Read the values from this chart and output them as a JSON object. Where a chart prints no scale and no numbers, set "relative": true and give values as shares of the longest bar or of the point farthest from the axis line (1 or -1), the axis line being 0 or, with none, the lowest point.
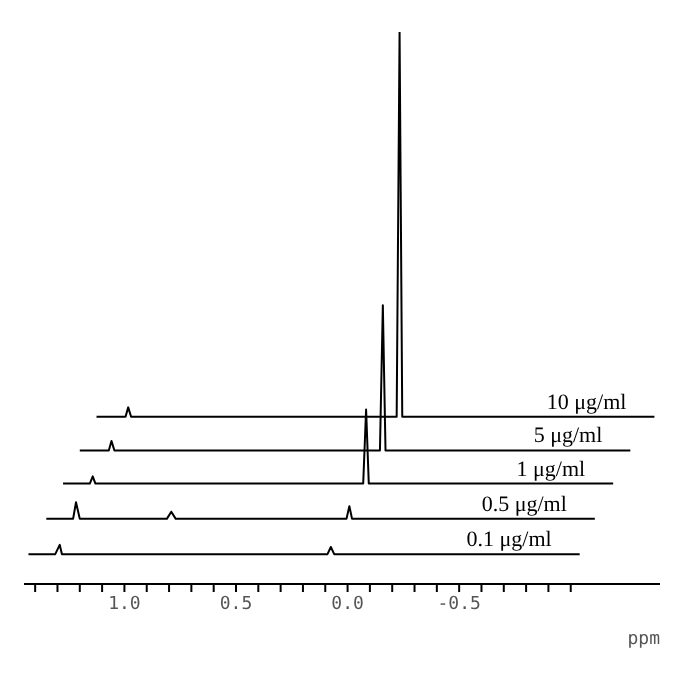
{
  "chart_data": {
    "type": "line",
    "relative": true,
    "xlabel": "ppm",
    "xlim": [
      1.45,
      -1.4
    ],
    "xticks": [
      {
        "value": 1.4,
        "label": null
      },
      {
        "value": 1.3,
        "label": null
      },
      {
        "value": 1.2,
        "label": null
      },
      {
        "value": 1.1,
        "label": null
      },
      {
        "value": 1.0,
        "label": "1.0"
      },
      {
        "value": 0.9,
        "label": null
      },
      {
        "value": 0.8,
        "label": null
      },
      {
        "value": 0.7,
        "label": null
      },
      {
        "value": 0.6,
        "label": null
      },
      {
        "value": 0.5,
        "label": "0.5"
      },
      {
        "value": 0.4,
        "label": null
      },
      {
        "value": 0.3,
        "label": null
      },
      {
        "value": 0.2,
        "label": null
      },
      {
        "value": 0.1,
        "label": null
      },
      {
        "value": 0.0,
        "label": "0.0"
      },
      {
        "value": -0.1,
        "label": null
      },
      {
        "value": -0.2,
        "label": null
      },
      {
        "value": -0.3,
        "label": null
      },
      {
        "value": -0.4,
        "label": null
      },
      {
        "value": -0.5,
        "label": "-0.5"
      },
      {
        "value": -0.6,
        "label": null
      },
      {
        "value": -0.7,
        "label": null
      },
      {
        "value": -0.8,
        "label": null
      },
      {
        "value": -0.9,
        "label": null
      },
      {
        "value": -1.0,
        "label": null
      }
    ],
    "legend": false,
    "grid": false,
    "marker": "none",
    "line_style": "solid",
    "series": [
      {
        "name": "0.1 μg/ml",
        "color": "#000000",
        "x": [
          1.43,
          1.31,
          1.29,
          1.28,
          0.09,
          0.075,
          0.06,
          -1.04
        ],
        "values": [
          0.054,
          0.054,
          0.071,
          0.054,
          0.054,
          0.067,
          0.054,
          0.054
        ]
      },
      {
        "name": "0.5 μg/ml",
        "color": "#000000",
        "x": [
          1.35,
          1.23,
          1.217,
          1.2,
          0.81,
          0.79,
          0.77,
          0.005,
          -0.008,
          -0.02,
          -1.108
        ],
        "values": [
          0.118,
          0.118,
          0.148,
          0.118,
          0.118,
          0.131,
          0.118,
          0.118,
          0.141,
          0.118,
          0.118
        ]
      },
      {
        "name": "1 μg/ml",
        "color": "#000000",
        "x": [
          1.275,
          1.155,
          1.142,
          1.13,
          -0.07,
          -0.083,
          -0.095,
          -1.19
        ],
        "values": [
          0.182,
          0.182,
          0.195,
          0.182,
          0.182,
          0.316,
          0.182,
          0.182
        ]
      },
      {
        "name": "5 μg/ml",
        "color": "#000000",
        "x": [
          1.2,
          1.07,
          1.058,
          1.045,
          -0.145,
          -0.158,
          -0.17,
          -1.267
        ],
        "values": [
          0.242,
          0.242,
          0.259,
          0.242,
          0.242,
          0.505,
          0.242,
          0.242
        ]
      },
      {
        "name": "10 μg/ml",
        "color": "#000000",
        "x": [
          1.125,
          0.995,
          0.983,
          0.97,
          -0.22,
          -0.233,
          -0.245,
          -1.375
        ],
        "values": [
          0.303,
          0.303,
          0.32,
          0.303,
          0.303,
          1,
          0.303,
          0.303
        ]
      }
    ]
  }
}
